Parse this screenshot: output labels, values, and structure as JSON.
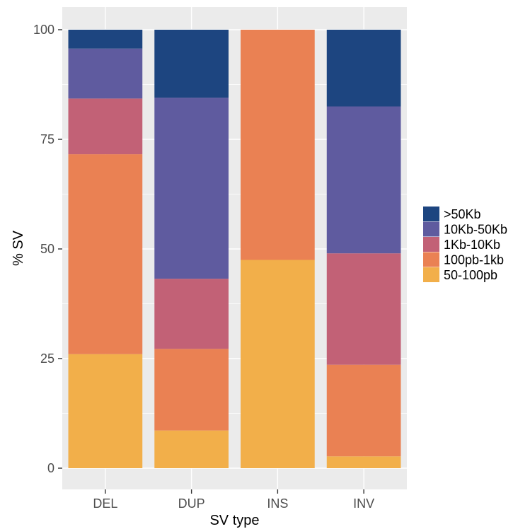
{
  "chart_data": {
    "type": "bar",
    "stacked": true,
    "xlabel": "SV type",
    "ylabel": "% SV",
    "ylim": [
      0,
      100
    ],
    "yticks": [
      0,
      25,
      50,
      75,
      100
    ],
    "grid": true,
    "legend_position": "right",
    "categories": [
      "DEL",
      "DUP",
      "INS",
      "INV"
    ],
    "series": [
      {
        "name": "50-100pb",
        "color": "#F2AF4A",
        "values": [
          26.0,
          8.6,
          47.5,
          2.7
        ]
      },
      {
        "name": "100pb-1kb",
        "color": "#EA8153",
        "values": [
          45.6,
          18.6,
          52.5,
          20.9
        ]
      },
      {
        "name": "1Kb-10Kb",
        "color": "#C26176",
        "values": [
          12.7,
          16.0,
          0,
          25.4
        ]
      },
      {
        "name": "10Kb-50Kb",
        "color": "#5F5B9F",
        "values": [
          11.4,
          41.3,
          0,
          33.5
        ]
      },
      {
        "name": ">50Kb",
        "color": "#1D4580",
        "values": [
          4.3,
          15.5,
          0,
          17.5
        ]
      }
    ],
    "legend_order": [
      ">50Kb",
      "10Kb-50Kb",
      "1Kb-10Kb",
      "100pb-1kb",
      "50-100pb"
    ],
    "panel_background": "#EBEBEB",
    "grid_color": "#FFFFFF"
  }
}
